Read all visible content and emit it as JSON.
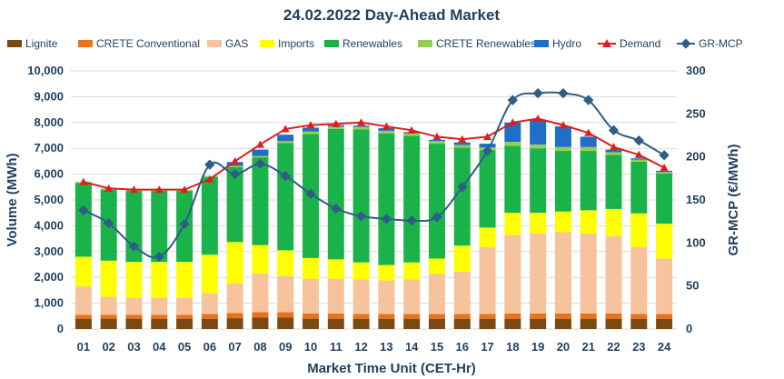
{
  "chart_data": {
    "type": "bar",
    "title": "24.02.2022  Day-Ahead Market",
    "xlabel": "Market Time Unit (CET-Hr)",
    "ylabel": "Volume (MWh)",
    "y2label": "GR-MCP (€/MWh)",
    "ylim": [
      0,
      10000
    ],
    "y2lim": [
      0,
      300
    ],
    "yticks": [
      "0",
      "1,000",
      "2,000",
      "3,000",
      "4,000",
      "5,000",
      "6,000",
      "7,000",
      "8,000",
      "9,000",
      "10,000"
    ],
    "y2ticks": [
      "0",
      "50",
      "100",
      "150",
      "200",
      "250",
      "300"
    ],
    "categories": [
      "01",
      "02",
      "03",
      "04",
      "05",
      "06",
      "07",
      "08",
      "09",
      "10",
      "11",
      "12",
      "13",
      "14",
      "15",
      "16",
      "17",
      "18",
      "19",
      "20",
      "21",
      "22",
      "23",
      "24"
    ],
    "series": [
      {
        "name": "Lignite",
        "kind": "bar",
        "color": "#7b4a12",
        "values": [
          400,
          400,
          400,
          400,
          400,
          400,
          420,
          450,
          450,
          400,
          400,
          400,
          400,
          400,
          400,
          400,
          400,
          400,
          400,
          400,
          400,
          400,
          400,
          400
        ]
      },
      {
        "name": "CRETE Conventional",
        "kind": "bar",
        "color": "#e8731d",
        "values": [
          150,
          150,
          150,
          150,
          150,
          180,
          200,
          200,
          200,
          200,
          200,
          180,
          180,
          180,
          180,
          180,
          180,
          200,
          200,
          200,
          200,
          200,
          180,
          180
        ]
      },
      {
        "name": "GAS",
        "kind": "bar",
        "color": "#f7c39c",
        "values": [
          1100,
          700,
          650,
          650,
          650,
          800,
          1150,
          1500,
          1400,
          1350,
          1350,
          1350,
          1300,
          1350,
          1550,
          1650,
          2600,
          3050,
          3100,
          3150,
          3100,
          3000,
          2600,
          2150
        ]
      },
      {
        "name": "Imports",
        "kind": "bar",
        "color": "#ffff00",
        "values": [
          1150,
          1400,
          1400,
          1400,
          1400,
          1500,
          1600,
          1100,
          1000,
          800,
          750,
          650,
          600,
          650,
          600,
          1000,
          750,
          850,
          800,
          800,
          900,
          1050,
          1300,
          1350
        ]
      },
      {
        "name": "Renewables",
        "kind": "bar",
        "color": "#1ab34a",
        "values": [
          2850,
          2750,
          2750,
          2750,
          2750,
          3000,
          2900,
          3400,
          4150,
          4800,
          5050,
          5150,
          5100,
          4900,
          4450,
          3800,
          3000,
          2600,
          2500,
          2350,
          2300,
          2100,
          2000,
          1950
        ]
      },
      {
        "name": "CRETE Renewables",
        "kind": "bar",
        "color": "#92d050",
        "values": [
          50,
          50,
          50,
          50,
          50,
          50,
          50,
          50,
          80,
          100,
          100,
          100,
          100,
          100,
          100,
          100,
          100,
          150,
          150,
          150,
          150,
          100,
          80,
          50
        ]
      },
      {
        "name": "Hydro",
        "kind": "bar",
        "color": "#1f6fc6",
        "values": [
          0,
          0,
          0,
          0,
          0,
          0,
          150,
          250,
          250,
          150,
          50,
          50,
          100,
          50,
          50,
          100,
          150,
          750,
          950,
          800,
          400,
          100,
          50,
          50
        ]
      },
      {
        "name": "Demand",
        "kind": "line",
        "axis": "left",
        "color": "#e11c1c",
        "values": [
          5700,
          5450,
          5400,
          5400,
          5400,
          5800,
          6500,
          7150,
          7750,
          7900,
          7950,
          8000,
          7850,
          7700,
          7450,
          7350,
          7450,
          8000,
          8150,
          7900,
          7600,
          7050,
          6750,
          6250
        ]
      },
      {
        "name": "GR-MCP",
        "kind": "line",
        "axis": "right",
        "color": "#2e5d86",
        "values": [
          138,
          123,
          96,
          84,
          122,
          191,
          180,
          192,
          178,
          157,
          140,
          131,
          128,
          126,
          130,
          165,
          207,
          266,
          274,
          274,
          266,
          231,
          219,
          202
        ]
      }
    ]
  }
}
